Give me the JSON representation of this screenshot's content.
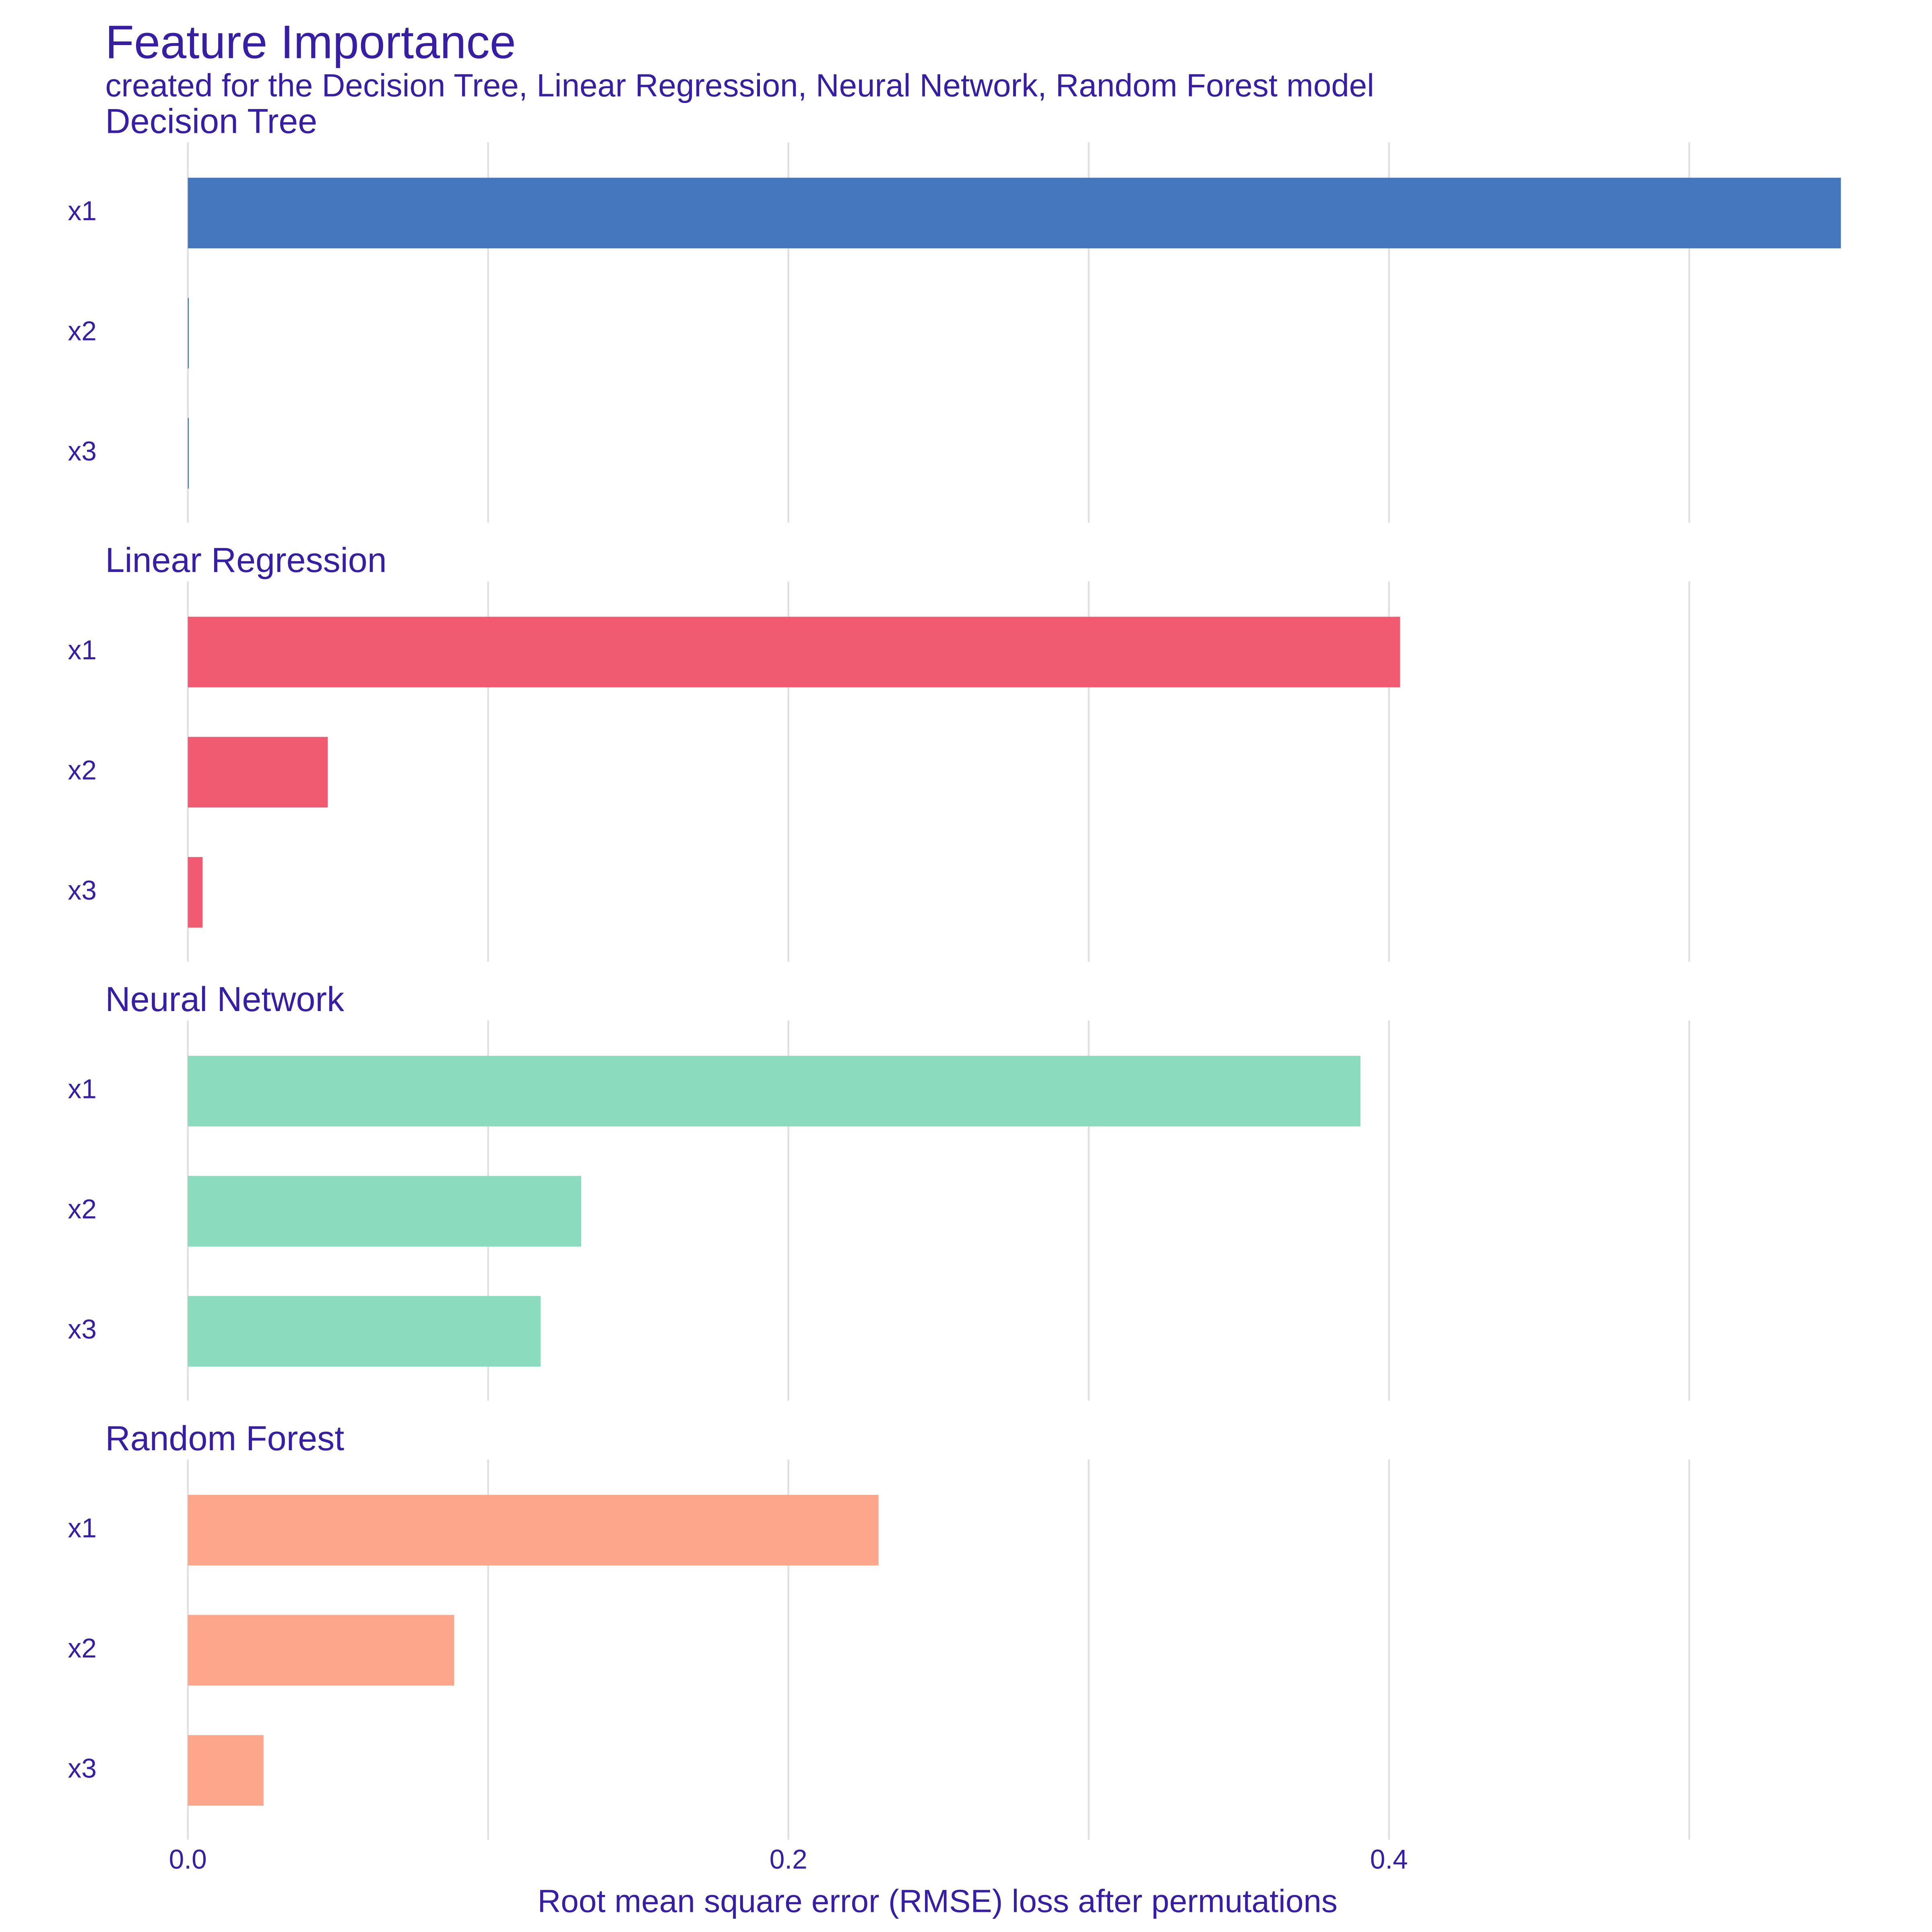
{
  "chart_data": {
    "type": "bar",
    "orientation": "horizontal",
    "title": "Feature Importance",
    "subtitle": "created for the Decision Tree, Linear Regression, Neural Network, Random Forest model",
    "xlabel": "Root mean square error (RMSE) loss after permutations",
    "xlim": [
      -0.011,
      0.573
    ],
    "xticks": [
      {
        "value": 0,
        "label": "0.0"
      },
      0.2,
      0.4
    ],
    "minor_gridlines": [
      0.1,
      0.3,
      0.5
    ],
    "grid": true,
    "panels": [
      {
        "title": "Decision Tree",
        "color": "#4477bd",
        "categories": [
          "x1",
          "x2",
          "x3"
        ],
        "values": [
          0.5505,
          0.0003,
          0.0003
        ]
      },
      {
        "title": "Linear Regression",
        "color": "#f05b72",
        "categories": [
          "x1",
          "x2",
          "x3"
        ],
        "values": [
          0.4037,
          0.0466,
          0.0049
        ]
      },
      {
        "title": "Neural Network",
        "color": "#8bdcbe",
        "categories": [
          "x1",
          "x2",
          "x3"
        ],
        "values": [
          0.3905,
          0.131,
          0.1175
        ]
      },
      {
        "title": "Random Forest",
        "color": "#fda68c",
        "categories": [
          "x1",
          "x2",
          "x3"
        ],
        "values": [
          0.23,
          0.0887,
          0.0252
        ]
      }
    ]
  }
}
